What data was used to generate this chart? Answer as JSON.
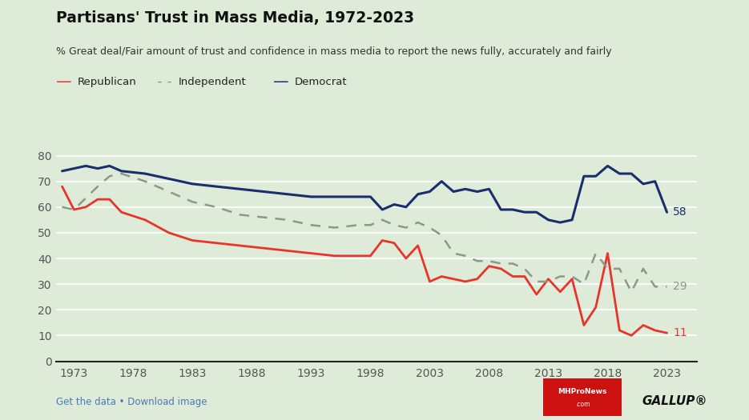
{
  "title": "Partisans' Trust in Mass Media, 1972-2023",
  "subtitle": "% Great deal/Fair amount of trust and confidence in mass media to report the news fully, accurately and fairly",
  "background_color": "#ddebd8",
  "ylim": [
    0,
    85
  ],
  "yticks": [
    0,
    10,
    20,
    30,
    40,
    50,
    60,
    70,
    80
  ],
  "xticks": [
    1973,
    1978,
    1983,
    1988,
    1993,
    1998,
    2003,
    2008,
    2013,
    2018,
    2023
  ],
  "xlim": [
    1971.5,
    2025.5
  ],
  "democrat": {
    "years": [
      1972,
      1973,
      1974,
      1975,
      1976,
      1977,
      1979,
      1981,
      1983,
      1985,
      1987,
      1989,
      1991,
      1993,
      1995,
      1997,
      1998,
      1999,
      2000,
      2001,
      2002,
      2003,
      2004,
      2005,
      2006,
      2007,
      2008,
      2009,
      2010,
      2011,
      2012,
      2013,
      2014,
      2015,
      2016,
      2017,
      2018,
      2019,
      2020,
      2021,
      2022,
      2023
    ],
    "values": [
      74,
      75,
      76,
      75,
      76,
      74,
      73,
      71,
      69,
      68,
      67,
      66,
      65,
      64,
      64,
      64,
      64,
      59,
      61,
      60,
      65,
      66,
      70,
      66,
      67,
      66,
      67,
      59,
      59,
      58,
      58,
      55,
      54,
      55,
      72,
      72,
      76,
      73,
      73,
      69,
      70,
      58
    ],
    "color": "#1a2e6e",
    "linewidth": 2.2
  },
  "republican": {
    "years": [
      1972,
      1973,
      1974,
      1975,
      1976,
      1977,
      1979,
      1981,
      1983,
      1985,
      1987,
      1989,
      1991,
      1993,
      1995,
      1997,
      1998,
      1999,
      2000,
      2001,
      2002,
      2003,
      2004,
      2005,
      2006,
      2007,
      2008,
      2009,
      2010,
      2011,
      2012,
      2013,
      2014,
      2015,
      2016,
      2017,
      2018,
      2019,
      2020,
      2021,
      2022,
      2023
    ],
    "values": [
      68,
      59,
      60,
      63,
      63,
      58,
      55,
      50,
      47,
      46,
      45,
      44,
      43,
      42,
      41,
      41,
      41,
      47,
      46,
      40,
      45,
      31,
      33,
      32,
      31,
      32,
      37,
      36,
      33,
      33,
      26,
      32,
      27,
      32,
      14,
      21,
      42,
      12,
      10,
      14,
      12,
      11
    ],
    "color": "#e8342a",
    "linewidth": 2.0
  },
  "independent": {
    "years": [
      1972,
      1973,
      1975,
      1976,
      1977,
      1979,
      1981,
      1983,
      1985,
      1987,
      1989,
      1991,
      1993,
      1995,
      1997,
      1998,
      1999,
      2000,
      2001,
      2002,
      2003,
      2004,
      2005,
      2006,
      2007,
      2008,
      2009,
      2010,
      2011,
      2012,
      2013,
      2014,
      2015,
      2016,
      2017,
      2018,
      2019,
      2020,
      2021,
      2022,
      2023
    ],
    "values": [
      60,
      59,
      68,
      72,
      73,
      70,
      66,
      62,
      60,
      57,
      56,
      55,
      53,
      52,
      53,
      53,
      55,
      53,
      52,
      54,
      52,
      49,
      42,
      41,
      39,
      39,
      38,
      38,
      36,
      31,
      31,
      33,
      33,
      30,
      42,
      36,
      36,
      27,
      36,
      29,
      29
    ],
    "color": "#8a9a87",
    "linewidth": 1.8,
    "linestyle": "--"
  },
  "end_labels": {
    "democrat_val": 58,
    "republican_val": 11,
    "independent_val": 29
  },
  "footer_left": "Get the data • Download image",
  "gallup_text": "GALLUP®"
}
